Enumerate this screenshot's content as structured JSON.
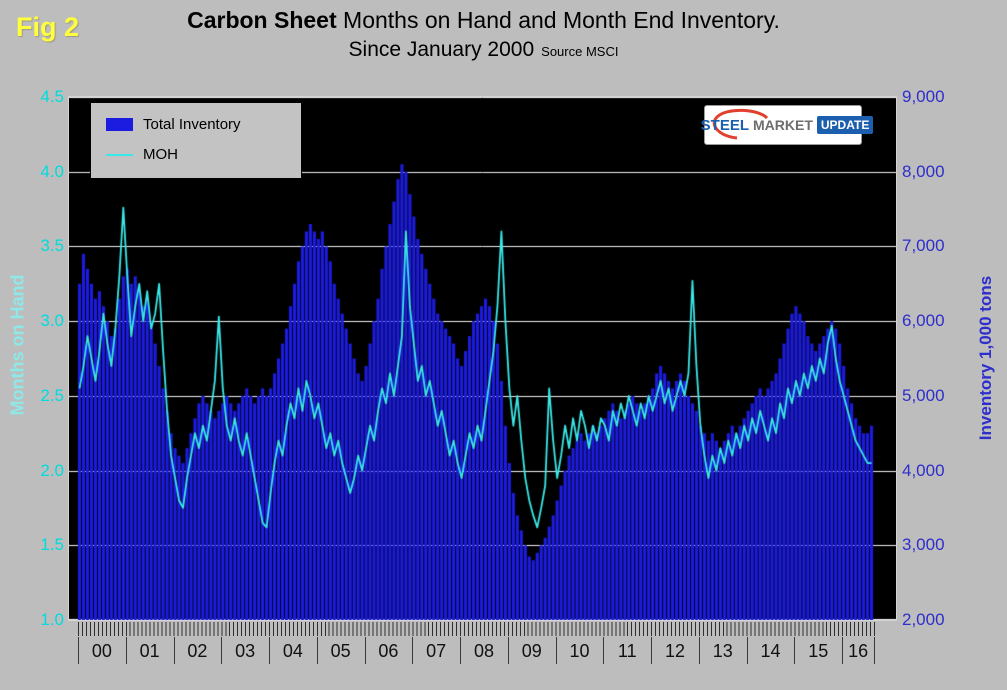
{
  "figure": {
    "fig_label": "Fig 2"
  },
  "title": {
    "bold": "Carbon Sheet",
    "line1_rest": "Months on Hand and Month End Inventory.",
    "line2": "Since January 2000",
    "source": "Source MSCI"
  },
  "legend": {
    "items": [
      {
        "label": "Total Inventory",
        "swatch": "bar"
      },
      {
        "label": "MOH",
        "swatch": "line"
      }
    ]
  },
  "logo": {
    "word1": "STEEL",
    "word2": "MARKET",
    "word3": "UPDATE"
  },
  "axes": {
    "left": {
      "title": "Months on Hand",
      "ticks": [
        "4.5",
        "4.0",
        "3.5",
        "3.0",
        "2.5",
        "2.0",
        "1.5",
        "1.0"
      ]
    },
    "right": {
      "title": "Inventory 1,000 tons",
      "ticks": [
        "9,000",
        "8,000",
        "7,000",
        "6,000",
        "5,000",
        "4,000",
        "3,000",
        "2,000"
      ]
    },
    "x": {
      "year_labels": [
        "00",
        "01",
        "02",
        "03",
        "04",
        "05",
        "06",
        "07",
        "08",
        "09",
        "10",
        "11",
        "12",
        "13",
        "14",
        "15",
        "16"
      ]
    }
  },
  "colors": {
    "page_bg": "#bdbdbd",
    "plot_bg": "#000000",
    "bar": "#1c1ce0",
    "line": "#39e8e8",
    "gridline": "#f0f0f0",
    "left_axis_text": "#00dcdc",
    "left_axis_title": "#8fe8e8",
    "right_axis_text": "#2e2ecc",
    "fig_label": "#ffff3c",
    "legend_bg": "#c3c3c3",
    "logo_blue": "#1b5fae",
    "logo_red": "#e2402e"
  },
  "chart_data": {
    "type": "bar+line",
    "title": "Carbon Sheet Months on Hand and Month End Inventory. Since January 2000",
    "source": "Source MSCI",
    "x_unit": "month",
    "x_start": "2000-01",
    "x_end": "2016-08",
    "n_points": 200,
    "grid": "horizontal",
    "legend_position": "top-left",
    "plot_background": "#000000",
    "left_axis": {
      "label": "Months on Hand",
      "range": [
        1.0,
        4.5
      ],
      "tick_step": 0.5
    },
    "right_axis": {
      "label": "Inventory 1,000 tons",
      "range": [
        2000,
        9000
      ],
      "tick_step": 1000
    },
    "x_axis": {
      "tick_labels": [
        "00",
        "01",
        "02",
        "03",
        "04",
        "05",
        "06",
        "07",
        "08",
        "09",
        "10",
        "11",
        "12",
        "13",
        "14",
        "15",
        "16"
      ]
    },
    "series": [
      {
        "name": "Total Inventory",
        "type": "bar",
        "axis": "right",
        "color": "#1c1ce0",
        "values": [
          6500,
          6900,
          6700,
          6500,
          6300,
          6400,
          6200,
          6000,
          5800,
          5900,
          6300,
          6600,
          6700,
          6500,
          6600,
          6400,
          6200,
          6300,
          6000,
          5700,
          5400,
          5100,
          4800,
          4500,
          4300,
          4200,
          4100,
          4300,
          4500,
          4700,
          4900,
          5000,
          4900,
          4800,
          4700,
          4800,
          4900,
          5000,
          4900,
          4800,
          4900,
          5000,
          5100,
          5000,
          4900,
          5000,
          5100,
          5000,
          5100,
          5300,
          5500,
          5700,
          5900,
          6200,
          6500,
          6800,
          7000,
          7200,
          7300,
          7200,
          7100,
          7200,
          7000,
          6800,
          6500,
          6300,
          6100,
          5900,
          5700,
          5500,
          5300,
          5200,
          5400,
          5700,
          6000,
          6300,
          6700,
          7000,
          7300,
          7600,
          7900,
          8100,
          8000,
          7700,
          7400,
          7100,
          6900,
          6700,
          6500,
          6300,
          6100,
          6000,
          5900,
          5800,
          5700,
          5500,
          5400,
          5600,
          5800,
          6000,
          6100,
          6200,
          6300,
          6200,
          6000,
          5700,
          5200,
          4600,
          4100,
          3700,
          3400,
          3200,
          3000,
          2850,
          2800,
          2900,
          3000,
          3100,
          3250,
          3400,
          3600,
          3800,
          4000,
          4200,
          4300,
          4400,
          4500,
          4400,
          4500,
          4600,
          4500,
          4600,
          4700,
          4800,
          4900,
          4800,
          4700,
          4800,
          4900,
          5000,
          4900,
          4800,
          4900,
          5000,
          5100,
          5300,
          5400,
          5300,
          5200,
          5100,
          5200,
          5300,
          5200,
          5000,
          4900,
          4800,
          4600,
          4500,
          4400,
          4500,
          4400,
          4300,
          4400,
          4500,
          4600,
          4500,
          4600,
          4700,
          4800,
          4900,
          5000,
          5100,
          5000,
          5100,
          5200,
          5300,
          5500,
          5700,
          5900,
          6100,
          6200,
          6100,
          6000,
          5800,
          5700,
          5600,
          5700,
          5800,
          5900,
          6000,
          5900,
          5700,
          5400,
          5100,
          4900,
          4700,
          4600,
          4500,
          4500,
          4600
        ]
      },
      {
        "name": "MOH",
        "type": "line",
        "axis": "left",
        "color": "#39e8e8",
        "values": [
          2.55,
          2.7,
          2.9,
          2.75,
          2.6,
          2.8,
          3.05,
          2.85,
          2.7,
          2.95,
          3.3,
          3.76,
          3.3,
          2.9,
          3.1,
          3.25,
          3.0,
          3.2,
          2.95,
          3.05,
          3.25,
          2.8,
          2.4,
          2.1,
          1.95,
          1.8,
          1.75,
          1.95,
          2.1,
          2.25,
          2.15,
          2.3,
          2.2,
          2.4,
          2.6,
          3.03,
          2.55,
          2.3,
          2.2,
          2.35,
          2.2,
          2.1,
          2.25,
          2.1,
          1.95,
          1.8,
          1.65,
          1.62,
          1.85,
          2.05,
          2.2,
          2.1,
          2.3,
          2.45,
          2.35,
          2.55,
          2.4,
          2.6,
          2.5,
          2.35,
          2.45,
          2.3,
          2.15,
          2.25,
          2.1,
          2.2,
          2.05,
          1.95,
          1.85,
          1.95,
          2.1,
          2.0,
          2.15,
          2.3,
          2.2,
          2.4,
          2.55,
          2.45,
          2.65,
          2.5,
          2.7,
          2.9,
          3.6,
          3.1,
          2.85,
          2.6,
          2.7,
          2.5,
          2.6,
          2.45,
          2.3,
          2.4,
          2.25,
          2.1,
          2.2,
          2.05,
          1.95,
          2.1,
          2.25,
          2.15,
          2.3,
          2.2,
          2.4,
          2.6,
          2.8,
          3.1,
          3.6,
          3.0,
          2.55,
          2.3,
          2.5,
          2.2,
          1.95,
          1.8,
          1.7,
          1.62,
          1.75,
          1.9,
          2.55,
          2.2,
          1.95,
          2.1,
          2.3,
          2.15,
          2.35,
          2.2,
          2.4,
          2.3,
          2.15,
          2.3,
          2.2,
          2.35,
          2.3,
          2.2,
          2.4,
          2.3,
          2.45,
          2.35,
          2.5,
          2.4,
          2.3,
          2.45,
          2.35,
          2.5,
          2.4,
          2.5,
          2.6,
          2.45,
          2.55,
          2.4,
          2.5,
          2.6,
          2.5,
          2.65,
          3.27,
          2.7,
          2.3,
          2.1,
          1.95,
          2.1,
          2.0,
          2.15,
          2.05,
          2.2,
          2.1,
          2.25,
          2.15,
          2.3,
          2.2,
          2.35,
          2.25,
          2.4,
          2.3,
          2.2,
          2.35,
          2.25,
          2.45,
          2.35,
          2.55,
          2.45,
          2.6,
          2.5,
          2.65,
          2.55,
          2.7,
          2.6,
          2.75,
          2.65,
          2.85,
          2.97,
          2.75,
          2.6,
          2.5,
          2.4,
          2.3,
          2.2,
          2.15,
          2.1,
          2.05,
          2.05
        ]
      }
    ]
  }
}
